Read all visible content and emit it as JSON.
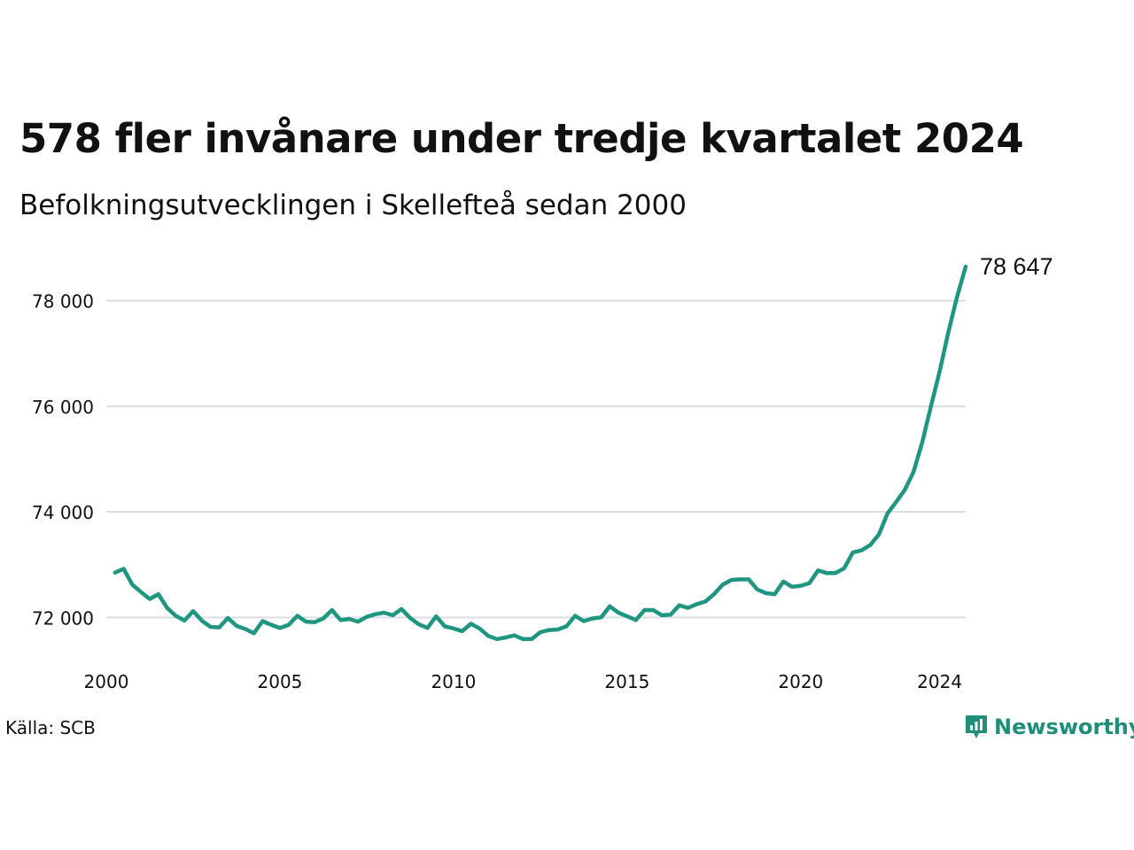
{
  "chart_data": {
    "type": "line",
    "title": "578 fler invånare under tredje kvartalet 2024",
    "subtitle": "Befolkningsutvecklingen i Skellefteå sedan 2000",
    "source": "Källa: SCB",
    "brand": "Newsworthy",
    "end_label": "78 647",
    "line_color": "#1e9680",
    "grid_color": "#dcdde3",
    "brand_color": "#1e8f78",
    "x_ticks": [
      2000,
      2005,
      2010,
      2015,
      2020,
      2024
    ],
    "y_ticks": [
      72000,
      74000,
      76000,
      78000
    ],
    "y_tick_labels": [
      "72 000",
      "74 000",
      "76 000",
      "78 000"
    ],
    "xlim": [
      2000,
      2024.75
    ],
    "ylim": [
      71200,
      78800
    ],
    "grid": true,
    "series": [
      {
        "x": [
          2000.25,
          2000.5,
          2000.75,
          2001,
          2001.25,
          2001.5,
          2001.75,
          2002,
          2002.25,
          2002.5,
          2002.75,
          2003,
          2003.25,
          2003.5,
          2003.75,
          2004,
          2004.25,
          2004.5,
          2004.75,
          2005,
          2005.25,
          2005.5,
          2005.75,
          2006,
          2006.25,
          2006.5,
          2006.75,
          2007,
          2007.25,
          2007.5,
          2007.75,
          2008,
          2008.25,
          2008.5,
          2008.75,
          2009,
          2009.25,
          2009.5,
          2009.75,
          2010,
          2010.25,
          2010.5,
          2010.75,
          2011,
          2011.25,
          2011.5,
          2011.75,
          2012,
          2012.25,
          2012.5,
          2012.75,
          2013,
          2013.25,
          2013.5,
          2013.75,
          2014,
          2014.25,
          2014.5,
          2014.75,
          2015,
          2015.25,
          2015.5,
          2015.75,
          2016,
          2016.25,
          2016.5,
          2016.75,
          2017,
          2017.25,
          2017.5,
          2017.75,
          2018,
          2018.25,
          2018.5,
          2018.75,
          2019,
          2019.25,
          2019.5,
          2019.75,
          2020,
          2020.25,
          2020.5,
          2020.75,
          2021,
          2021.25,
          2021.5,
          2021.75,
          2022,
          2022.25,
          2022.5,
          2022.75,
          2023,
          2023.25,
          2023.5,
          2023.75,
          2024,
          2024.25,
          2024.5,
          2024.75
        ],
        "y": [
          72850,
          72920,
          72620,
          72480,
          72350,
          72440,
          72180,
          72030,
          71940,
          72120,
          71940,
          71820,
          71810,
          71990,
          71840,
          71780,
          71700,
          71930,
          71860,
          71800,
          71860,
          72030,
          71920,
          71910,
          71980,
          72140,
          71950,
          71970,
          71920,
          72010,
          72060,
          72090,
          72040,
          72160,
          71990,
          71870,
          71800,
          72020,
          71830,
          71790,
          71740,
          71880,
          71790,
          71650,
          71590,
          71620,
          71660,
          71590,
          71590,
          71720,
          71760,
          71770,
          71830,
          72030,
          71930,
          71980,
          72000,
          72210,
          72090,
          72020,
          71950,
          72140,
          72140,
          72040,
          72050,
          72230,
          72180,
          72250,
          72300,
          72440,
          72620,
          72710,
          72720,
          72720,
          72530,
          72460,
          72440,
          72680,
          72580,
          72600,
          72650,
          72890,
          72840,
          72840,
          72930,
          73230,
          73270,
          73370,
          73570,
          73970,
          74190,
          74420,
          74760,
          75320,
          76000,
          76660,
          77400,
          78070,
          78647
        ]
      }
    ]
  }
}
